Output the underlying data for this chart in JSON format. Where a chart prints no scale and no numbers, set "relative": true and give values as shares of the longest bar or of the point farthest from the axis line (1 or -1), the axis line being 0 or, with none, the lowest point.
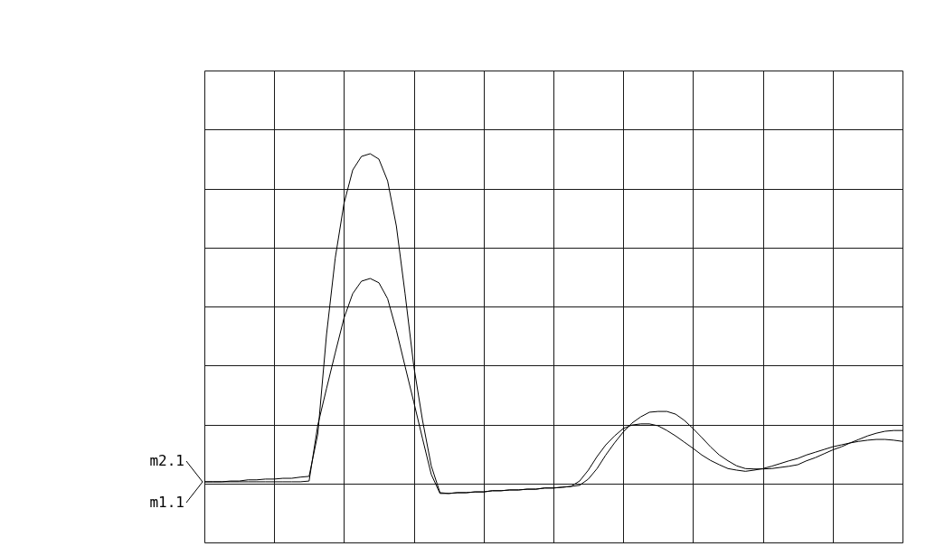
{
  "chart_data": {
    "type": "line",
    "relative": true,
    "grid": true,
    "legend": "left",
    "tick_labels": false,
    "categories": [
      null,
      null,
      null,
      null,
      null,
      null,
      null,
      null,
      null,
      null,
      null,
      null,
      null,
      null,
      null,
      null,
      null,
      null,
      null,
      null,
      null,
      null,
      null,
      null,
      null,
      null,
      null,
      null,
      null,
      null,
      null,
      null,
      null,
      null,
      null,
      null,
      null,
      null,
      null,
      null,
      null,
      null,
      null,
      null,
      null,
      null,
      null,
      null,
      null,
      null,
      null,
      null,
      null,
      null,
      null,
      null,
      null,
      null,
      null,
      null,
      null,
      null,
      null,
      null,
      null,
      null,
      null,
      null,
      null,
      null,
      null,
      null,
      null,
      null,
      null,
      null,
      null,
      null,
      null,
      null,
      null
    ],
    "series": [
      {
        "name": "m2.1",
        "color": "#000000",
        "values": [
          0.156,
          0.156,
          0.156,
          0.158,
          0.158,
          0.161,
          0.161,
          0.163,
          0.163,
          0.165,
          0.165,
          0.168,
          0.17,
          0.279,
          0.535,
          0.732,
          0.872,
          0.958,
          0.993,
          1,
          0.986,
          0.93,
          0.814,
          0.64,
          0.453,
          0.314,
          0.197,
          0.128,
          0.126,
          0.128,
          0.128,
          0.13,
          0.13,
          0.133,
          0.133,
          0.135,
          0.135,
          0.137,
          0.137,
          0.14,
          0.14,
          0.142,
          0.144,
          0.147,
          0.163,
          0.19,
          0.225,
          0.256,
          0.284,
          0.307,
          0.323,
          0.335,
          0.337,
          0.337,
          0.33,
          0.314,
          0.293,
          0.27,
          0.246,
          0.225,
          0.21,
          0.197,
          0.19,
          0.189,
          0.189,
          0.19,
          0.193,
          0.196,
          0.2,
          0.21,
          0.218,
          0.228,
          0.238,
          0.246,
          0.256,
          0.265,
          0.274,
          0.281,
          0.286,
          0.288,
          0.288
        ]
      },
      {
        "name": "m1.1",
        "color": "#000000",
        "values": [
          0.156,
          0.156,
          0.156,
          0.156,
          0.156,
          0.156,
          0.156,
          0.156,
          0.156,
          0.156,
          0.156,
          0.156,
          0.158,
          0.302,
          0.396,
          0.488,
          0.577,
          0.64,
          0.672,
          0.679,
          0.668,
          0.627,
          0.546,
          0.453,
          0.361,
          0.267,
          0.175,
          0.126,
          0.126,
          0.128,
          0.128,
          0.13,
          0.13,
          0.133,
          0.133,
          0.135,
          0.135,
          0.137,
          0.137,
          0.14,
          0.14,
          0.142,
          0.144,
          0.158,
          0.186,
          0.221,
          0.251,
          0.274,
          0.293,
          0.302,
          0.305,
          0.305,
          0.3,
          0.288,
          0.274,
          0.258,
          0.242,
          0.225,
          0.211,
          0.2,
          0.19,
          0.186,
          0.183,
          0.186,
          0.19,
          0.196,
          0.203,
          0.21,
          0.216,
          0.225,
          0.232,
          0.239,
          0.246,
          0.251,
          0.256,
          0.26,
          0.263,
          0.265,
          0.265,
          0.263,
          0.26
        ]
      }
    ]
  }
}
